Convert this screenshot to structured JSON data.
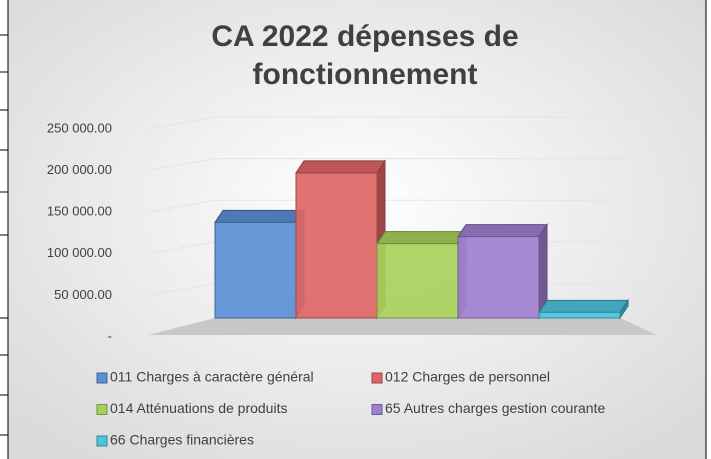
{
  "chart_data": {
    "type": "bar",
    "title": "CA 2022 dépenses de fonctionnement",
    "categories": [
      null
    ],
    "series": [
      {
        "name": "011 Charges à caractère général",
        "color": "#5b8fd4",
        "values": [
          135000
        ]
      },
      {
        "name": "012 Charges de personnel",
        "color": "#e06666",
        "values": [
          205000
        ]
      },
      {
        "name": "014 Atténuations de produits",
        "color": "#a8d05a",
        "values": [
          105000
        ]
      },
      {
        "name": "65 Autres charges gestion courante",
        "color": "#9f7fd0",
        "values": [
          115000
        ]
      },
      {
        "name": "66 Charges financières",
        "color": "#4bc4de",
        "values": [
          8000
        ]
      }
    ],
    "ylim": [
      0,
      250000
    ],
    "yticks": [
      {
        "value": 0,
        "label": "-"
      },
      {
        "value": 50000,
        "label": "50 000.00"
      },
      {
        "value": 100000,
        "label": "100 000.00"
      },
      {
        "value": 150000,
        "label": "150 000.00"
      },
      {
        "value": 200000,
        "label": "200 000.00"
      },
      {
        "value": 250000,
        "label": "250 000.00"
      }
    ],
    "grid": true
  }
}
